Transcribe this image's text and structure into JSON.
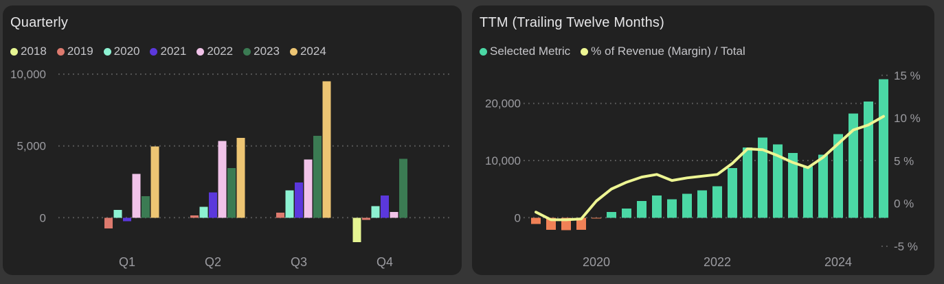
{
  "page": {
    "background_color": "#363636",
    "panel_color": "#212121",
    "grid_dot_color": "#5c5c5c",
    "axis_text_color": "#9c9ca1",
    "title_text_color": "#e6e6e8"
  },
  "chart_data": [
    {
      "type": "bar",
      "title": "Quarterly",
      "categories": [
        "Q1",
        "Q2",
        "Q3",
        "Q4"
      ],
      "series": [
        {
          "name": "2018",
          "color": "#e6f592",
          "values": [
            null,
            null,
            null,
            -1700
          ]
        },
        {
          "name": "2019",
          "color": "#dd7a6e",
          "values": [
            -750,
            150,
            350,
            -150
          ]
        },
        {
          "name": "2020",
          "color": "#8df2d2",
          "values": [
            550,
            750,
            1900,
            800
          ]
        },
        {
          "name": "2021",
          "color": "#5b38dc",
          "values": [
            -250,
            1750,
            2450,
            1550
          ]
        },
        {
          "name": "2022",
          "color": "#f1c3e9",
          "values": [
            3050,
            5350,
            4050,
            400
          ]
        },
        {
          "name": "2023",
          "color": "#3b7b53",
          "values": [
            1500,
            3450,
            5700,
            4100
          ]
        },
        {
          "name": "2024",
          "color": "#edc573",
          "values": [
            4950,
            5550,
            9500,
            null
          ]
        }
      ],
      "yticks": [
        0,
        5000,
        10000
      ],
      "ytick_labels": [
        "0",
        "5,000",
        "10,000"
      ],
      "ylim": [
        -2200,
        10500
      ],
      "grid": "dotted",
      "legend_position": "top"
    },
    {
      "type": "bar+line",
      "title": "TTM (Trailing Twelve Months)",
      "bar_series": {
        "name": "Selected Metric",
        "color_positive": "#4bd8a5",
        "color_negative": "#f08156",
        "values": [
          -1100,
          -2100,
          -2200,
          -2100,
          -150,
          1000,
          1600,
          2900,
          3900,
          3200,
          4200,
          4750,
          5500,
          8700,
          12300,
          14000,
          12800,
          11300,
          8950,
          11000,
          14600,
          18200,
          20300,
          24200
        ]
      },
      "line_series": {
        "name": "% of Revenue (Margin) / Total",
        "color": "#edf593",
        "values": [
          -1.0,
          -1.9,
          -1.9,
          -1.8,
          0.3,
          1.7,
          2.5,
          3.1,
          3.4,
          2.7,
          3.0,
          3.2,
          3.4,
          4.7,
          6.4,
          6.3,
          5.6,
          4.8,
          4.2,
          5.4,
          7.0,
          8.6,
          9.2,
          10.2
        ]
      },
      "left_axis": {
        "ticks": [
          0,
          10000,
          20000
        ],
        "tick_labels": [
          "0",
          "10,000",
          "20,000"
        ],
        "lim": [
          -2600,
          24500
        ]
      },
      "right_axis": {
        "ticks": [
          -5,
          0,
          5,
          10,
          15
        ],
        "tick_labels": [
          "-5 %",
          "0 %",
          "5 %",
          "10 %",
          "15 %"
        ],
        "lim": [
          -6.5,
          15.5
        ]
      },
      "x_axis": {
        "labels": [
          "2020",
          "2022",
          "2024"
        ],
        "label_bar_index": [
          4,
          12,
          20
        ]
      },
      "grid": "dotted",
      "legend_position": "top"
    }
  ]
}
